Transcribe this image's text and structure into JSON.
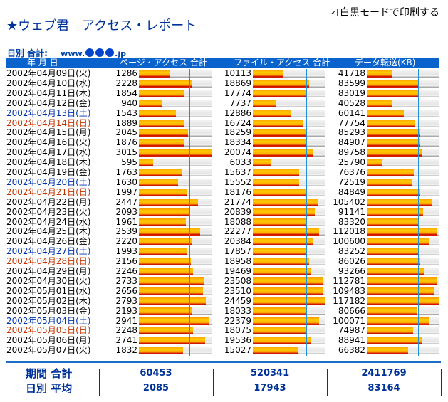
{
  "print_toggle": {
    "label": "白黒モードで印刷する",
    "checked": true,
    "check_glyph": "✓"
  },
  "title": {
    "star": "★",
    "text": "ウェブ君　アクセス・レポート"
  },
  "subtitle": {
    "label": "日別 合計:",
    "domain_prefix": "www.",
    "domain_masked": "●●●",
    "domain_suffix": ".jp"
  },
  "columns": {
    "date": "年 月 日",
    "page": "ページ・アクセス 合計",
    "file": "ファイル・アクセス 合計",
    "data": "データ転送(KB)"
  },
  "colors": {
    "accent": "#0a63cc",
    "title": "#003399",
    "saturday": "#0033aa",
    "sunday": "#c33300",
    "bar": "#ffb000",
    "avg_line": "#1e90e0"
  },
  "scales": {
    "page_max": 3015,
    "file_max": 24459,
    "data_max": 117182
  },
  "rows": [
    {
      "date": "2002年04月09日(火)",
      "day": "weekday",
      "page": 1286,
      "file": 10113,
      "data": 41718
    },
    {
      "date": "2002年04月10日(水)",
      "day": "weekday",
      "page": 2228,
      "file": 18869,
      "data": 83599
    },
    {
      "date": "2002年04月11日(木)",
      "day": "weekday",
      "page": 1854,
      "file": 17774,
      "data": 83019
    },
    {
      "date": "2002年04月12日(金)",
      "day": "weekday",
      "page": 940,
      "file": 7737,
      "data": 40528
    },
    {
      "date": "2002年04月13日(土)",
      "day": "sat",
      "page": 1543,
      "file": 12886,
      "data": 60141
    },
    {
      "date": "2002年04月14日(日)",
      "day": "sun",
      "page": 1889,
      "file": 16724,
      "data": 77754
    },
    {
      "date": "2002年04月15日(月)",
      "day": "weekday",
      "page": 2045,
      "file": 18259,
      "data": 85293
    },
    {
      "date": "2002年04月16日(火)",
      "day": "weekday",
      "page": 1876,
      "file": 18334,
      "data": 84907
    },
    {
      "date": "2002年04月17日(水)",
      "day": "weekday",
      "page": 3015,
      "file": 20074,
      "data": 89758
    },
    {
      "date": "2002年04月18日(木)",
      "day": "weekday",
      "page": 595,
      "file": 6033,
      "data": 25790
    },
    {
      "date": "2002年04月19日(金)",
      "day": "weekday",
      "page": 1763,
      "file": 15637,
      "data": 76376
    },
    {
      "date": "2002年04月20日(土)",
      "day": "sat",
      "page": 1630,
      "file": 15552,
      "data": 72519
    },
    {
      "date": "2002年04月21日(日)",
      "day": "sun",
      "page": 1997,
      "file": 18176,
      "data": 84849
    },
    {
      "date": "2002年04月22日(月)",
      "day": "weekday",
      "page": 2447,
      "file": 21774,
      "data": 105402
    },
    {
      "date": "2002年04月23日(火)",
      "day": "weekday",
      "page": 2093,
      "file": 20839,
      "data": 91141
    },
    {
      "date": "2002年04月24日(水)",
      "day": "weekday",
      "page": 1961,
      "file": 18088,
      "data": 83320
    },
    {
      "date": "2002年04月25日(木)",
      "day": "weekday",
      "page": 2539,
      "file": 22277,
      "data": 112018
    },
    {
      "date": "2002年04月26日(金)",
      "day": "weekday",
      "page": 2220,
      "file": 20384,
      "data": 100600
    },
    {
      "date": "2002年04月27日(土)",
      "day": "sat",
      "page": 1993,
      "file": 17857,
      "data": 83252
    },
    {
      "date": "2002年04月28日(日)",
      "day": "sun",
      "page": 2156,
      "file": 18958,
      "data": 86026
    },
    {
      "date": "2002年04月29日(月)",
      "day": "weekday",
      "page": 2246,
      "file": 19469,
      "data": 93266
    },
    {
      "date": "2002年04月30日(火)",
      "day": "weekday",
      "page": 2733,
      "file": 23508,
      "data": 112781
    },
    {
      "date": "2002年05月01日(水)",
      "day": "weekday",
      "page": 2656,
      "file": 23510,
      "data": 109483
    },
    {
      "date": "2002年05月02日(木)",
      "day": "weekday",
      "page": 2793,
      "file": 24459,
      "data": 117182
    },
    {
      "date": "2002年05月03日(金)",
      "day": "weekday",
      "page": 2193,
      "file": 18033,
      "data": 80666
    },
    {
      "date": "2002年05月04日(土)",
      "day": "sat",
      "page": 2941,
      "file": 22379,
      "data": 100071
    },
    {
      "date": "2002年05月05日(日)",
      "day": "sun",
      "page": 2248,
      "file": 18075,
      "data": 74987
    },
    {
      "date": "2002年05月06日(月)",
      "day": "weekday",
      "page": 2741,
      "file": 19536,
      "data": 88941
    },
    {
      "date": "2002年05月07日(火)",
      "day": "weekday",
      "page": 1832,
      "file": 15027,
      "data": 66382
    }
  ],
  "footer": {
    "total_label": "期間 合計",
    "avg_label": "日別 平均",
    "totals": {
      "page": "60453",
      "file": "520341",
      "data": "2411769"
    },
    "averages": {
      "page": "2085",
      "file": "17943",
      "data": "83164"
    }
  }
}
